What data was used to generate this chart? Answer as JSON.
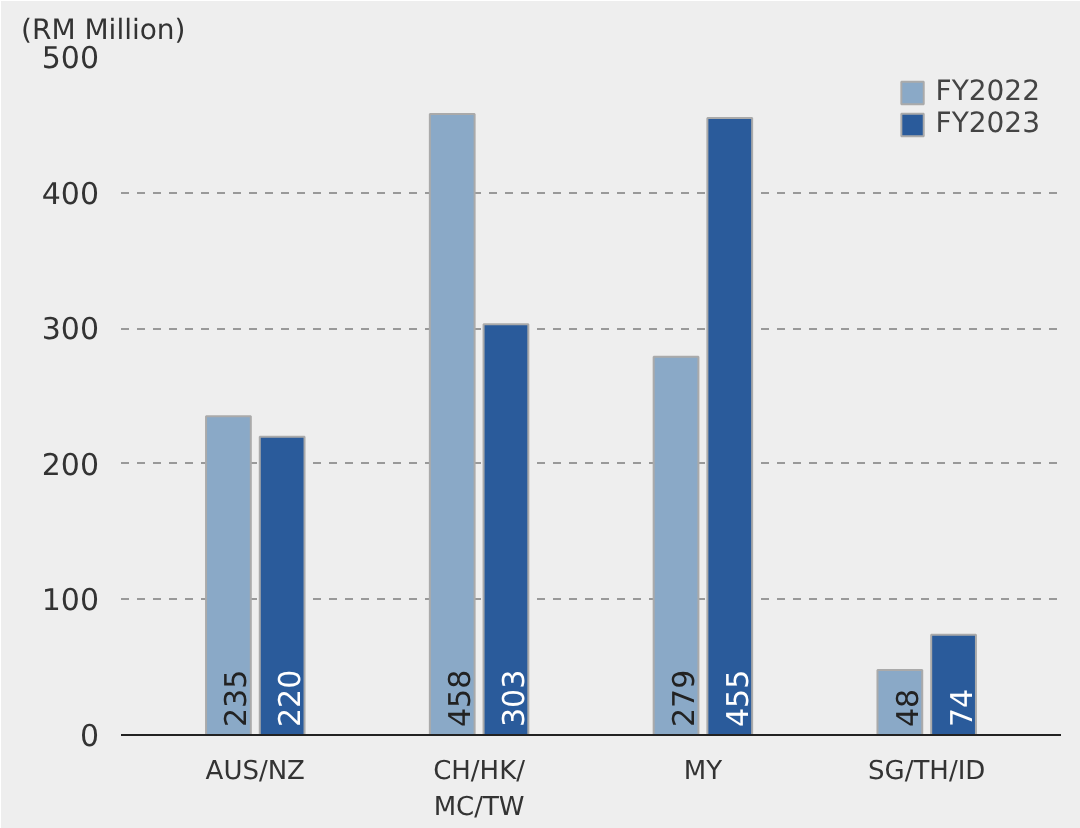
{
  "chart_data": {
    "type": "bar",
    "ylabel": "(RM Million)",
    "categories": [
      "AUS/NZ",
      "CH/HK/\nMC/TW",
      "MY",
      "SG/TH/ID"
    ],
    "series": [
      {
        "name": "FY2022",
        "color": "#8aa9c7",
        "values": [
          235,
          458,
          279,
          48
        ]
      },
      {
        "name": "FY2023",
        "color": "#2a5b9b",
        "values": [
          220,
          303,
          455,
          74
        ]
      }
    ],
    "ylim": [
      0,
      500
    ],
    "yticks": [
      0,
      100,
      200,
      300,
      400,
      500
    ],
    "grid": "y",
    "legend": "top right",
    "data_labels": true
  }
}
